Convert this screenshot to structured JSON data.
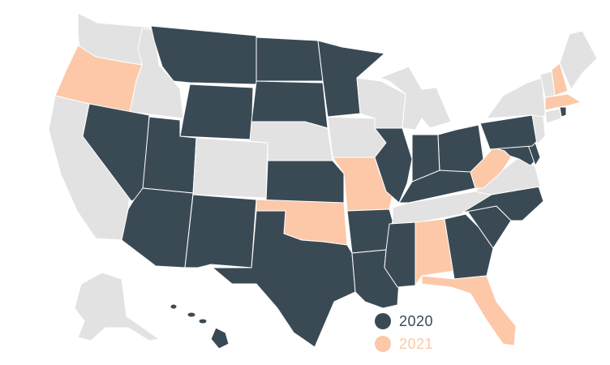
{
  "colors": {
    "default": "#e2e2e2",
    "y2020": "#3a4a55",
    "y2021": "#fcc8a8",
    "border": "#ffffff"
  },
  "legend": [
    {
      "label": "2020",
      "color": "#3a4a55"
    },
    {
      "label": "2021",
      "color": "#fcc8a8"
    }
  ],
  "states": [
    {
      "code": "WA",
      "group": "default"
    },
    {
      "code": "OR",
      "group": "y2021"
    },
    {
      "code": "CA",
      "group": "default"
    },
    {
      "code": "ID",
      "group": "default"
    },
    {
      "code": "NV",
      "group": "y2020"
    },
    {
      "code": "MT",
      "group": "y2020"
    },
    {
      "code": "WY",
      "group": "y2020"
    },
    {
      "code": "UT",
      "group": "y2020"
    },
    {
      "code": "AZ",
      "group": "y2020"
    },
    {
      "code": "CO",
      "group": "default"
    },
    {
      "code": "NM",
      "group": "y2020"
    },
    {
      "code": "ND",
      "group": "y2020"
    },
    {
      "code": "SD",
      "group": "y2020"
    },
    {
      "code": "NE",
      "group": "default"
    },
    {
      "code": "KS",
      "group": "y2020"
    },
    {
      "code": "OK",
      "group": "y2021"
    },
    {
      "code": "TX",
      "group": "y2020"
    },
    {
      "code": "MN",
      "group": "y2020"
    },
    {
      "code": "IA",
      "group": "default"
    },
    {
      "code": "MO",
      "group": "y2021"
    },
    {
      "code": "AR",
      "group": "y2020"
    },
    {
      "code": "LA",
      "group": "y2020"
    },
    {
      "code": "WI",
      "group": "default"
    },
    {
      "code": "IL",
      "group": "y2020"
    },
    {
      "code": "MI",
      "group": "default"
    },
    {
      "code": "IN",
      "group": "y2020"
    },
    {
      "code": "OH",
      "group": "y2020"
    },
    {
      "code": "KY",
      "group": "y2020"
    },
    {
      "code": "TN",
      "group": "default"
    },
    {
      "code": "MS",
      "group": "y2020"
    },
    {
      "code": "AL",
      "group": "y2021"
    },
    {
      "code": "GA",
      "group": "y2020"
    },
    {
      "code": "FL",
      "group": "y2021"
    },
    {
      "code": "SC",
      "group": "y2020"
    },
    {
      "code": "NC",
      "group": "y2020"
    },
    {
      "code": "VA",
      "group": "default"
    },
    {
      "code": "WV",
      "group": "y2021"
    },
    {
      "code": "MD",
      "group": "y2020"
    },
    {
      "code": "DE",
      "group": "y2020"
    },
    {
      "code": "PA",
      "group": "y2020"
    },
    {
      "code": "NY",
      "group": "default"
    },
    {
      "code": "NJ",
      "group": "default"
    },
    {
      "code": "CT",
      "group": "default"
    },
    {
      "code": "RI",
      "group": "y2020"
    },
    {
      "code": "MA",
      "group": "y2021"
    },
    {
      "code": "VT",
      "group": "default"
    },
    {
      "code": "NH",
      "group": "y2021"
    },
    {
      "code": "ME",
      "group": "default"
    },
    {
      "code": "AK",
      "group": "default"
    },
    {
      "code": "HI",
      "group": "y2020"
    }
  ]
}
